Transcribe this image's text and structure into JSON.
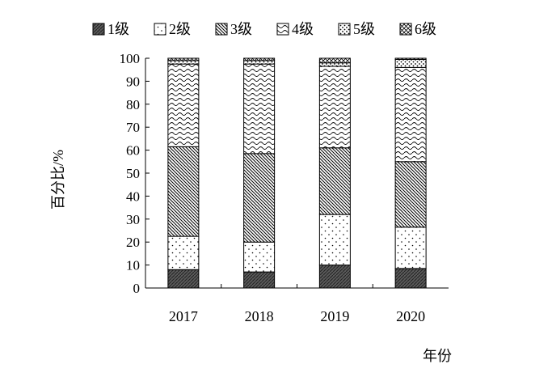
{
  "chart_data": {
    "type": "bar",
    "stacked": true,
    "categories": [
      "2017",
      "2018",
      "2019",
      "2020"
    ],
    "series": [
      {
        "name": "1级",
        "pattern": "solid-dark",
        "values": [
          8,
          7,
          10,
          8.5
        ]
      },
      {
        "name": "2级",
        "pattern": "dots-sparse",
        "values": [
          14.5,
          13,
          22,
          18
        ]
      },
      {
        "name": "3级",
        "pattern": "diagonal-dense",
        "values": [
          39,
          38.5,
          29,
          28.5
        ]
      },
      {
        "name": "4级",
        "pattern": "waves",
        "values": [
          36,
          39,
          35.5,
          41
        ]
      },
      {
        "name": "5级",
        "pattern": "dots",
        "values": [
          1.5,
          1.5,
          1.5,
          3.5
        ]
      },
      {
        "name": "6级",
        "pattern": "crosshatch",
        "values": [
          1,
          1,
          2,
          0.5
        ]
      }
    ],
    "xlabel": "年份",
    "ylabel": "百分比/%",
    "ylim": [
      0,
      100
    ],
    "yticks": [
      "0",
      "10",
      "20",
      "30",
      "40",
      "50",
      "60",
      "70",
      "80",
      "90",
      "100"
    ],
    "grid": false,
    "legend": "top"
  }
}
